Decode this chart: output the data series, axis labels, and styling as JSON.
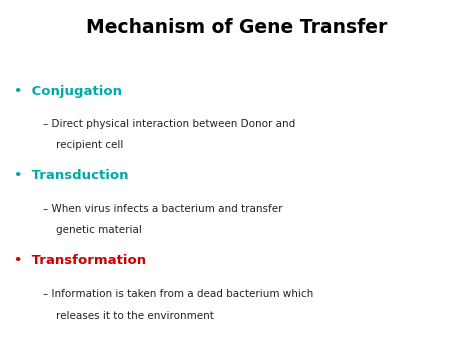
{
  "title": "Mechanism of Gene Transfer",
  "title_fontsize": 13.5,
  "title_fontweight": "bold",
  "title_color": "#000000",
  "background_color": "#ffffff",
  "bullet_color_1": "#00AAAA",
  "bullet_color_2": "#00AAAA",
  "bullet_color_3": "#CC0000",
  "bullet_text_1": "Conjugation",
  "bullet_text_2": "Transduction",
  "bullet_text_3": "Transformation",
  "sub_text_1a": "– Direct physical interaction between Donor and",
  "sub_text_1b": "    recipient cell",
  "sub_text_2a": "– When virus infects a bacterium and transfer",
  "sub_text_2b": "    genetic material",
  "sub_text_3a": "– Information is taken from a dead bacterium which",
  "sub_text_3b": "    releases it to the environment",
  "bullet_fontsize": 9.5,
  "sub_fontsize": 7.5,
  "text_color": "#222222"
}
